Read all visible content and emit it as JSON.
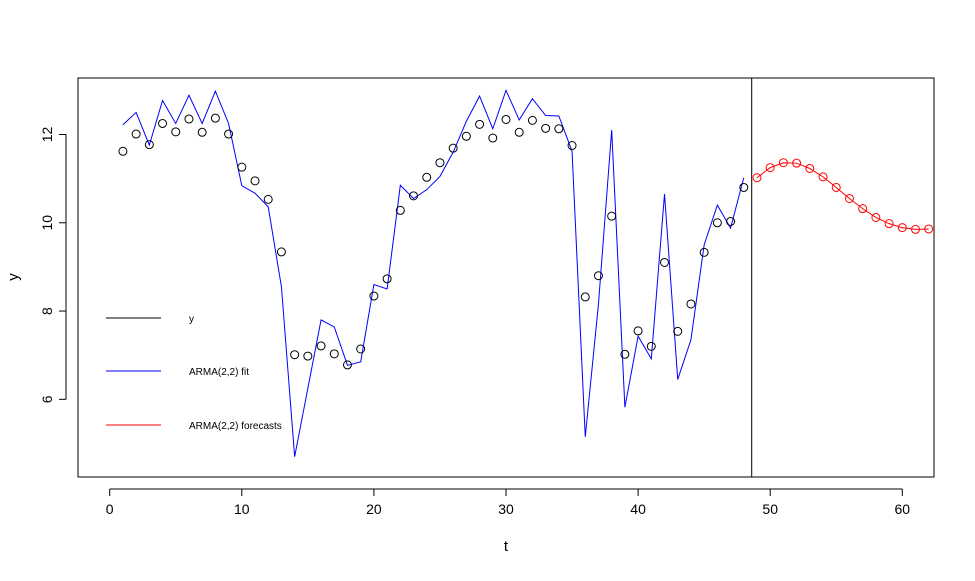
{
  "chart_data": {
    "type": "line",
    "xlabel": "t",
    "ylabel": "y",
    "xlim": [
      -2.4,
      62.4
    ],
    "ylim": [
      4.24,
      13.28
    ],
    "x_ticks": [
      0,
      10,
      20,
      30,
      40,
      50,
      60
    ],
    "y_ticks": [
      6,
      8,
      10,
      12
    ],
    "vertical_line_x": 48.6,
    "colors": {
      "observed": "#000000",
      "fit": "#0000ff",
      "forecast": "#ff0000"
    },
    "series": [
      {
        "name": "y",
        "style": "open-circles",
        "x": [
          1,
          2,
          3,
          4,
          5,
          6,
          7,
          8,
          9,
          10,
          11,
          12,
          13,
          14,
          15,
          16,
          17,
          18,
          19,
          20,
          21,
          22,
          23,
          24,
          25,
          26,
          27,
          28,
          29,
          30,
          31,
          32,
          33,
          34,
          35,
          36,
          37,
          38,
          39,
          40,
          41,
          42,
          43,
          44,
          45,
          46,
          47,
          48
        ],
        "values": [
          11.62,
          12.01,
          11.77,
          12.25,
          12.06,
          12.35,
          12.05,
          12.37,
          12.01,
          11.26,
          10.95,
          10.53,
          9.34,
          7.01,
          6.98,
          7.21,
          7.03,
          6.78,
          7.14,
          8.34,
          8.73,
          10.28,
          10.61,
          11.03,
          11.36,
          11.69,
          11.96,
          12.23,
          11.92,
          12.34,
          12.05,
          12.32,
          12.14,
          12.13,
          11.75,
          8.32,
          8.8,
          10.15,
          7.02,
          7.55,
          7.2,
          9.1,
          7.54,
          8.16,
          9.33,
          10.0,
          10.03,
          10.8
        ]
      },
      {
        "name": "ARMA(2,2) fit",
        "style": "line",
        "x": [
          1,
          2,
          3,
          4,
          5,
          6,
          7,
          8,
          9,
          10,
          11,
          12,
          13,
          14,
          15,
          16,
          17,
          18,
          19,
          20,
          21,
          22,
          23,
          24,
          25,
          26,
          27,
          28,
          29,
          30,
          31,
          32,
          33,
          34,
          35,
          36,
          37,
          38,
          39,
          40,
          41,
          42,
          43,
          44,
          45,
          46,
          47,
          48
        ],
        "values": [
          12.22,
          12.5,
          11.76,
          12.77,
          12.25,
          12.89,
          12.25,
          12.98,
          12.25,
          10.84,
          10.67,
          10.36,
          8.55,
          4.7,
          6.25,
          7.8,
          7.64,
          6.77,
          6.85,
          8.6,
          8.5,
          10.85,
          10.55,
          10.75,
          11.05,
          11.6,
          12.3,
          12.87,
          12.13,
          13.0,
          12.33,
          12.81,
          12.43,
          12.42,
          11.62,
          5.15,
          8.16,
          12.1,
          5.82,
          7.43,
          6.92,
          10.65,
          6.45,
          7.35,
          9.5,
          10.4,
          9.88,
          11.02
        ]
      },
      {
        "name": "ARMA(2,2) forecasts",
        "style": "line-with-circles",
        "x": [
          49,
          50,
          51,
          52,
          53,
          54,
          55,
          56,
          57,
          58,
          59,
          60,
          61,
          62
        ],
        "values": [
          11.02,
          11.25,
          11.36,
          11.35,
          11.23,
          11.04,
          10.8,
          10.55,
          10.32,
          10.12,
          9.98,
          9.89,
          9.85,
          9.86
        ]
      }
    ],
    "legend": {
      "position": "bottom-left",
      "entries": [
        "y",
        "ARMA(2,2) fit",
        "ARMA(2,2) forecasts"
      ]
    }
  }
}
